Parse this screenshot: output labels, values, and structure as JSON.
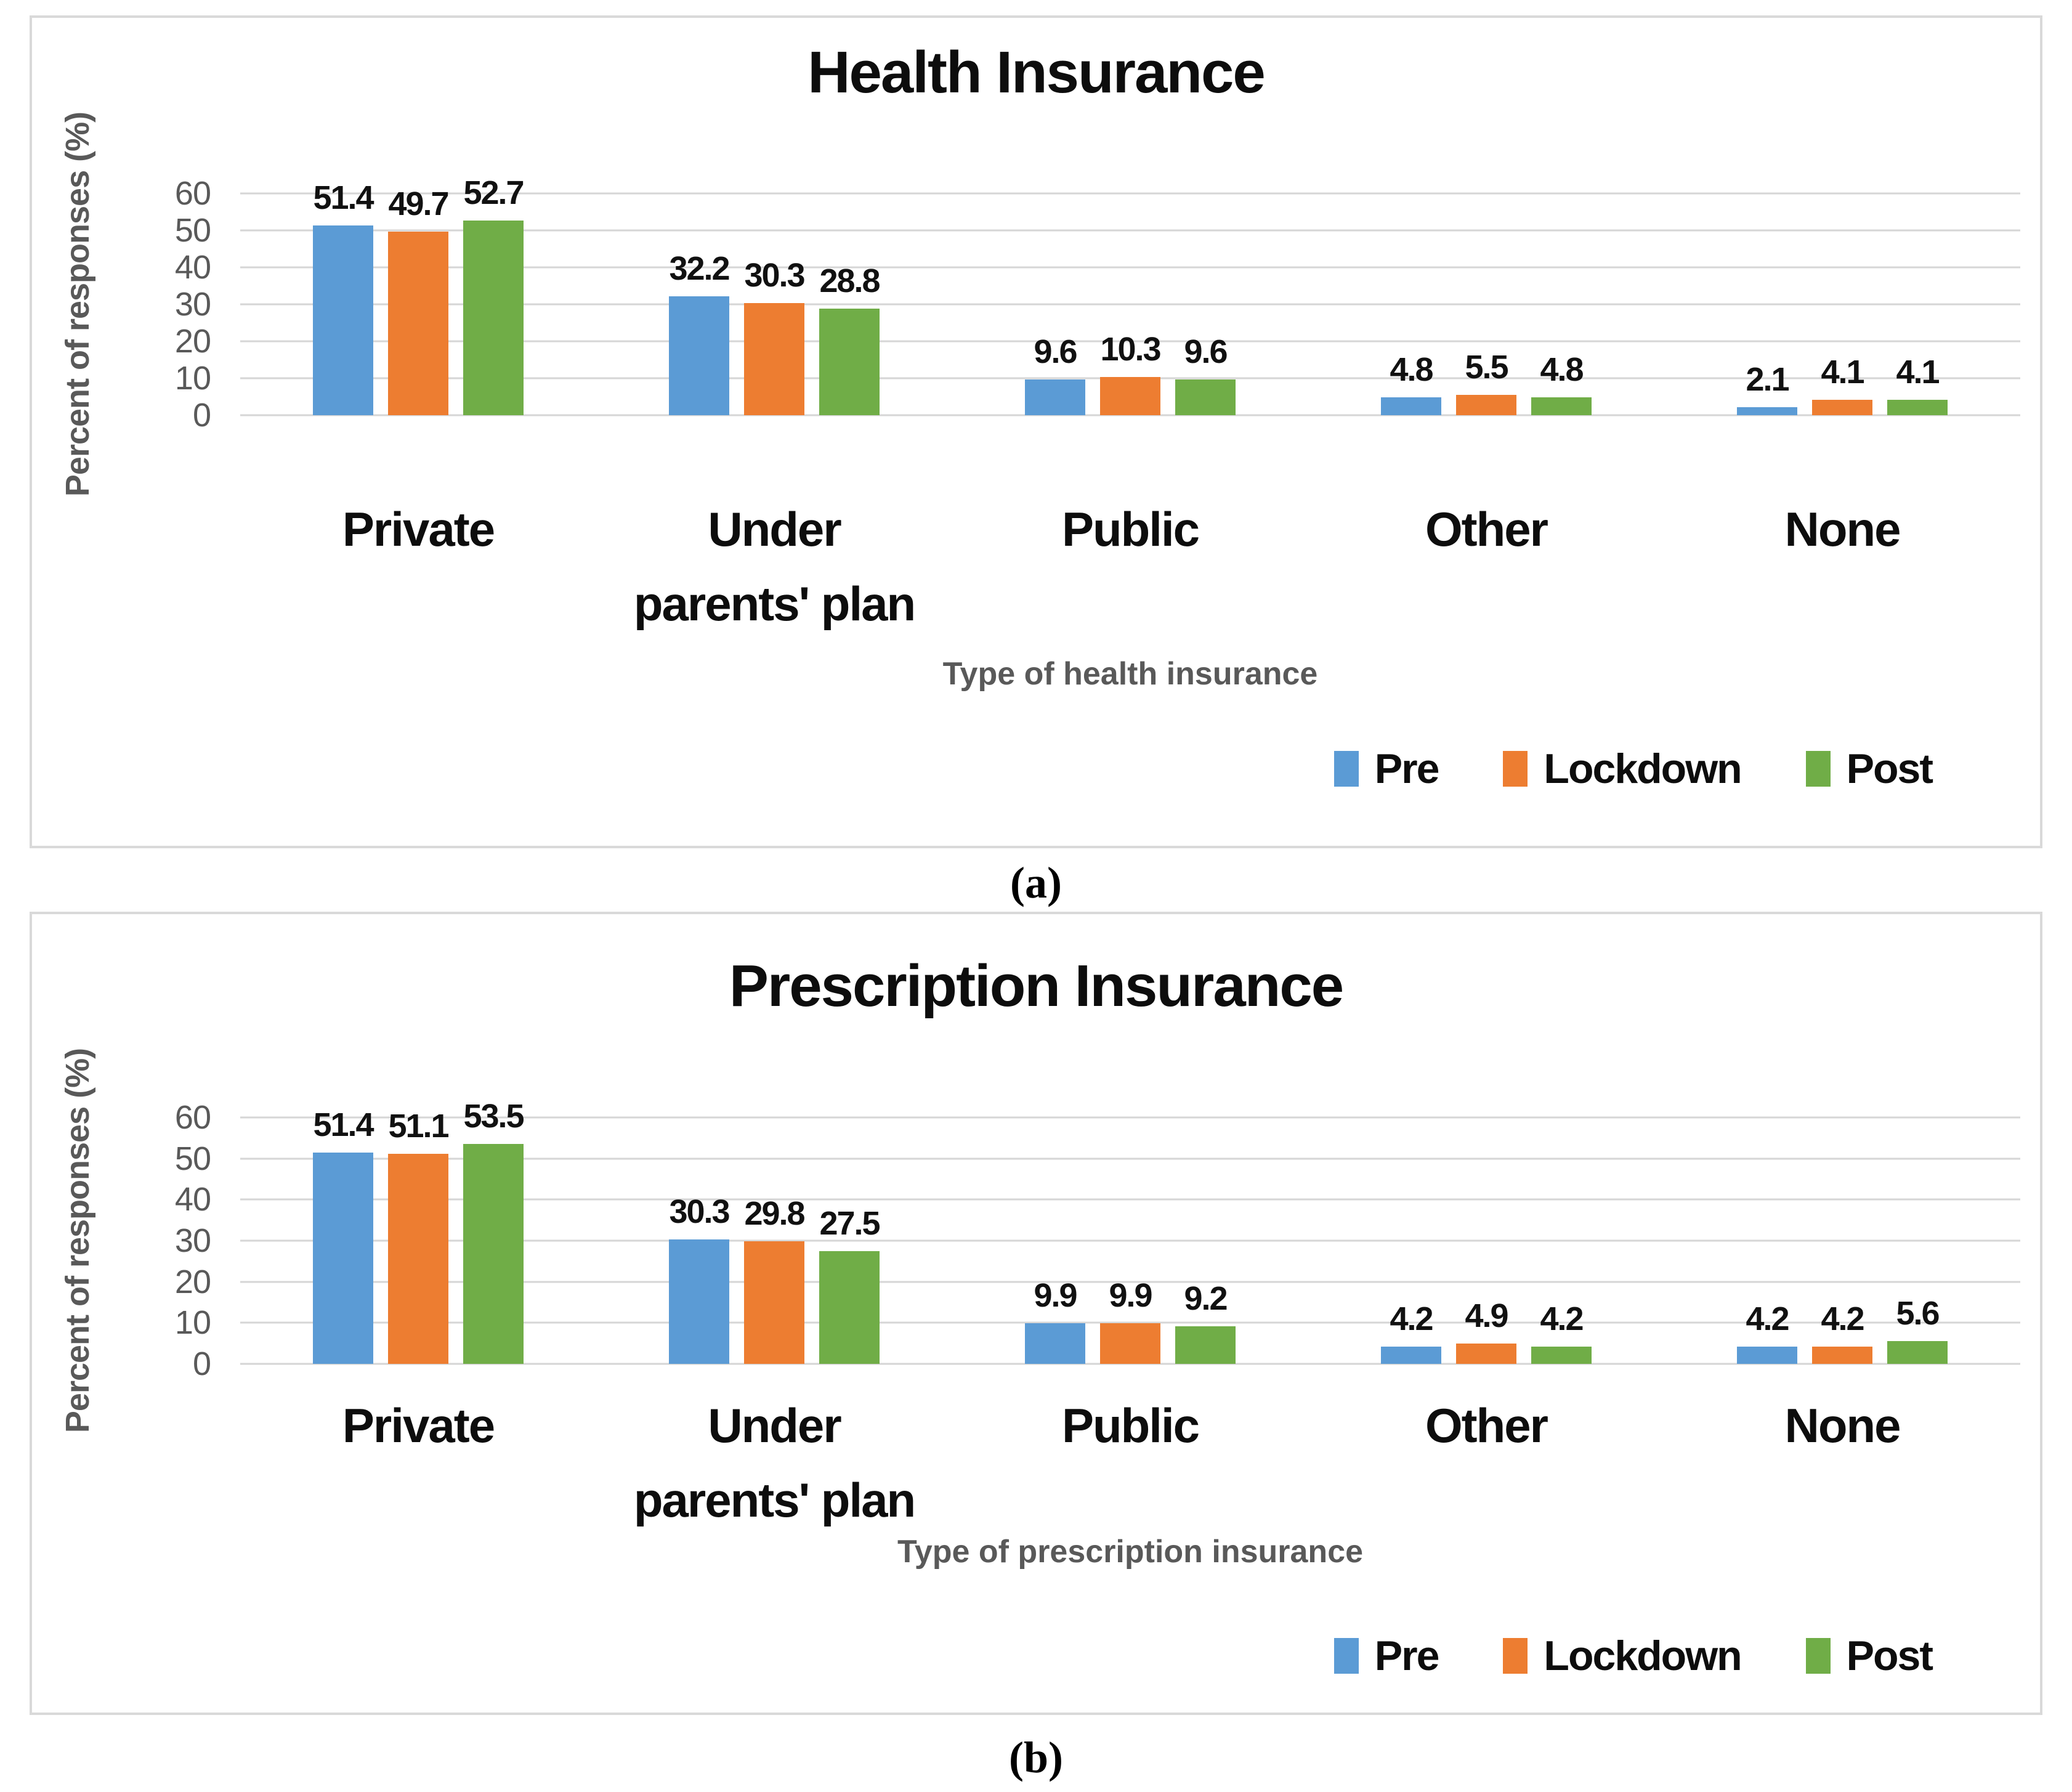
{
  "figure": {
    "captions": [
      "(a)",
      "(b)"
    ]
  },
  "chart_data": [
    {
      "type": "bar",
      "title": "Health Insurance",
      "xlabel": "Type of health insurance",
      "ylabel": "Percent of responses (%)",
      "ylim": [
        0,
        60
      ],
      "yticks": [
        0,
        10,
        20,
        30,
        40,
        50,
        60
      ],
      "grid": true,
      "legend_position": "bottom-right",
      "categories": [
        "Private",
        "Under\nparents' plan",
        "Public",
        "Other",
        "None"
      ],
      "series": [
        {
          "name": "Pre",
          "color": "#5B9BD5",
          "values": [
            51.4,
            32.2,
            9.6,
            4.8,
            2.1
          ]
        },
        {
          "name": "Lockdown",
          "color": "#ED7D31",
          "values": [
            49.7,
            30.3,
            10.3,
            5.5,
            4.1
          ]
        },
        {
          "name": "Post",
          "color": "#70AD47",
          "values": [
            52.7,
            28.8,
            9.6,
            4.8,
            4.1
          ]
        }
      ]
    },
    {
      "type": "bar",
      "title": "Prescription Insurance",
      "xlabel": "Type of prescription insurance",
      "ylabel": "Percent of responses (%)",
      "ylim": [
        0,
        60
      ],
      "yticks": [
        0,
        10,
        20,
        30,
        40,
        50,
        60
      ],
      "grid": true,
      "legend_position": "bottom-right",
      "categories": [
        "Private",
        "Under\nparents' plan",
        "Public",
        "Other",
        "None"
      ],
      "series": [
        {
          "name": "Pre",
          "color": "#5B9BD5",
          "values": [
            51.4,
            30.3,
            9.9,
            4.2,
            4.2
          ]
        },
        {
          "name": "Lockdown",
          "color": "#ED7D31",
          "values": [
            51.1,
            29.8,
            9.9,
            4.9,
            4.2
          ]
        },
        {
          "name": "Post",
          "color": "#70AD47",
          "values": [
            53.5,
            27.5,
            9.2,
            4.2,
            5.6
          ]
        }
      ]
    }
  ],
  "colors": {
    "grid": "#D6D6D6",
    "axis_text": "#595959",
    "label_text": "#0D0D0D",
    "panel_border": "#D9D9D9",
    "background": "#FFFFFF"
  }
}
